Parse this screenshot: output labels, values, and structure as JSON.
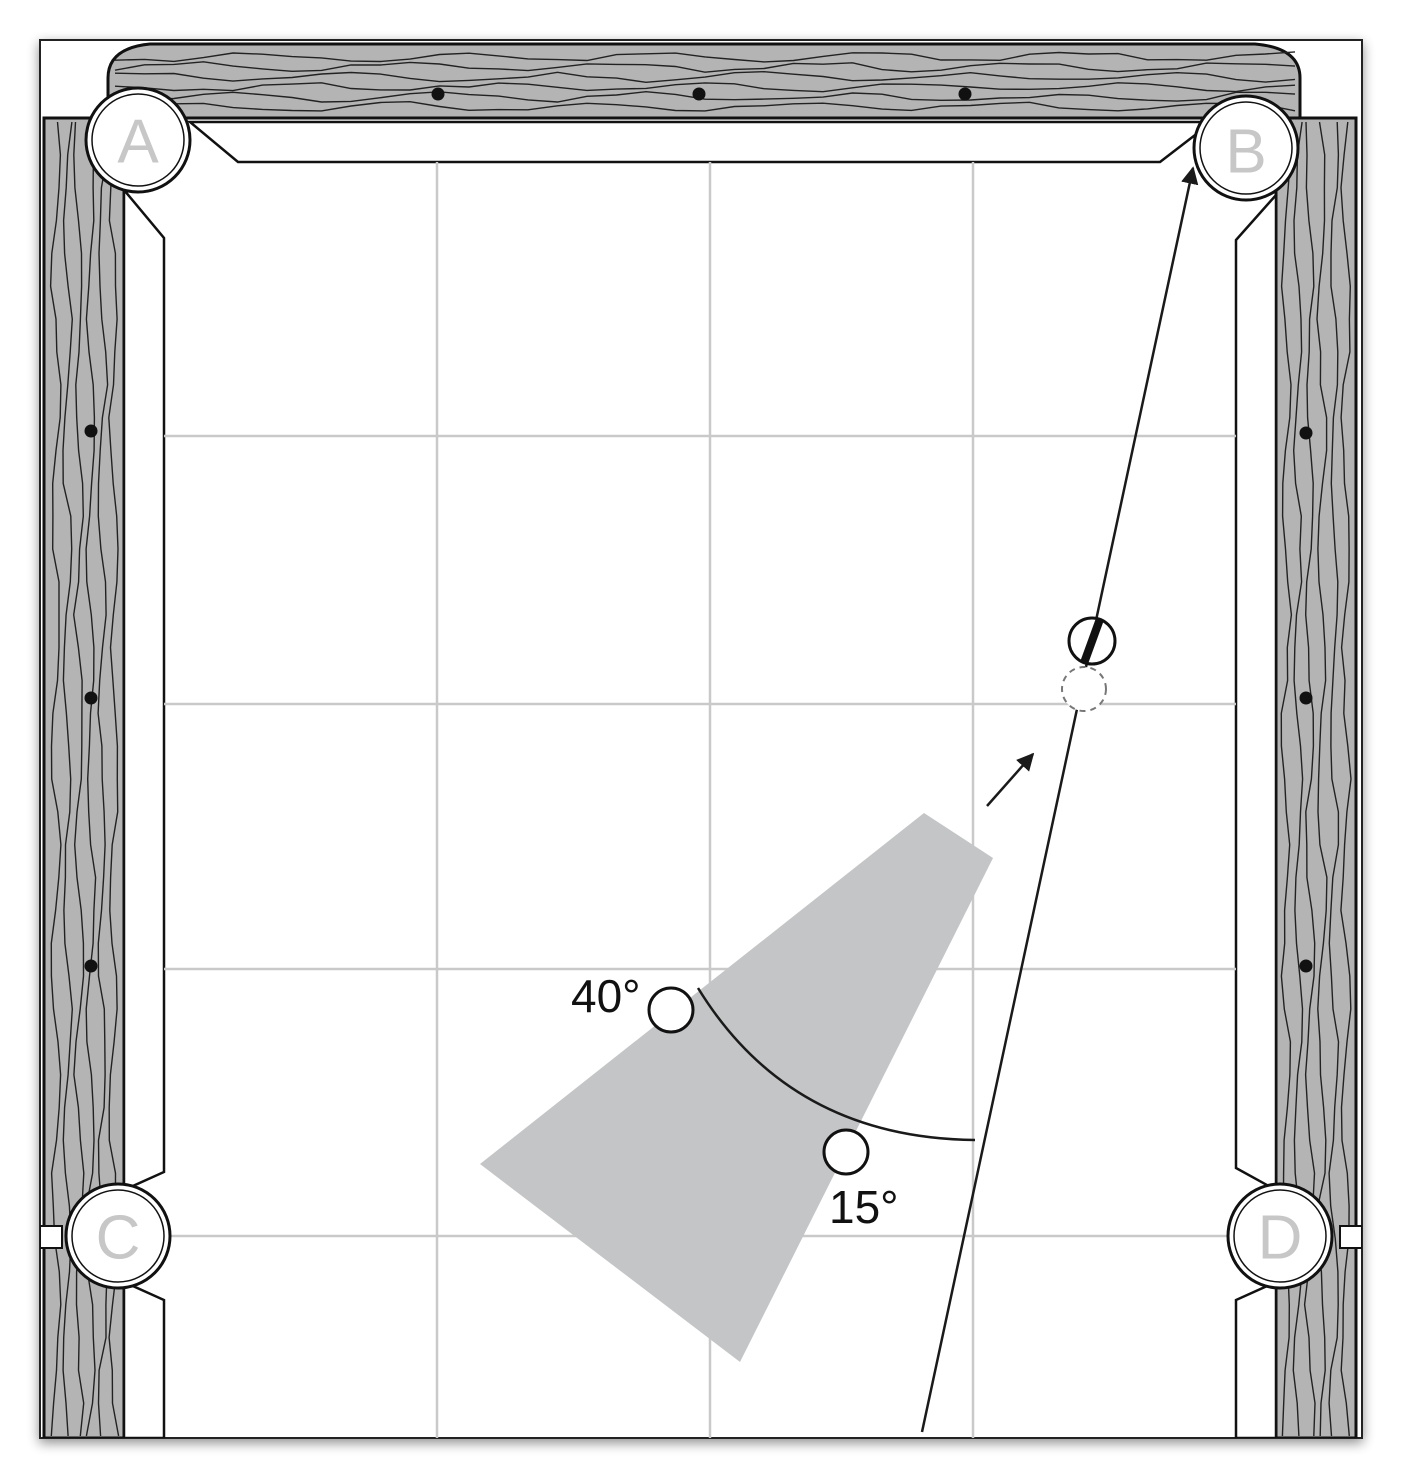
{
  "pockets": {
    "a": "A",
    "b": "B",
    "c": "C",
    "d": "D"
  },
  "angles": {
    "high": "40°",
    "low": "15°"
  },
  "colors": {
    "rail_wood": "#b4b4b4",
    "rail_frame": "#111111",
    "cloth": "#ffffff",
    "grid": "#c9c9c9",
    "zone": "#c4c5c6",
    "line": "#1a1a1a",
    "pocket_text": "#c7c7c7"
  },
  "icons": {
    "object_ball": "striped-ball-icon",
    "ghost_ball": "ghost-ball-icon",
    "cue_ball_40": "cue-ball-icon",
    "cue_ball_15": "cue-ball-icon"
  }
}
